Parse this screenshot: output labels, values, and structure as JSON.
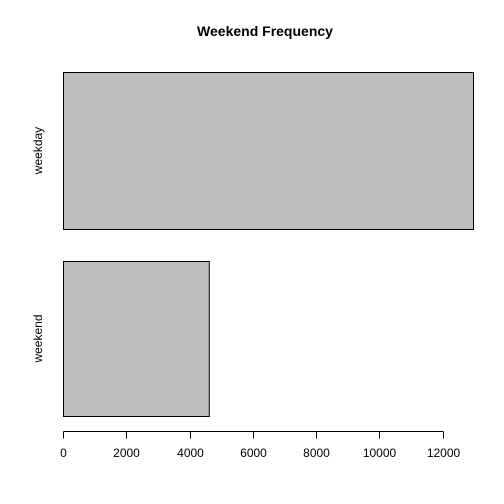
{
  "chart_data": {
    "type": "bar",
    "orientation": "horizontal",
    "title": "Weekend Frequency",
    "xlabel": "",
    "ylabel": "",
    "categories": [
      "weekday",
      "weekend"
    ],
    "values": [
      12960,
      4608
    ],
    "xlim": [
      0,
      12960
    ],
    "x_ticks": [
      0,
      2000,
      4000,
      6000,
      8000,
      10000,
      12000
    ],
    "grid": false,
    "legend": "none",
    "bar_color": "#bebebe",
    "bar_border_color": "#000000"
  }
}
